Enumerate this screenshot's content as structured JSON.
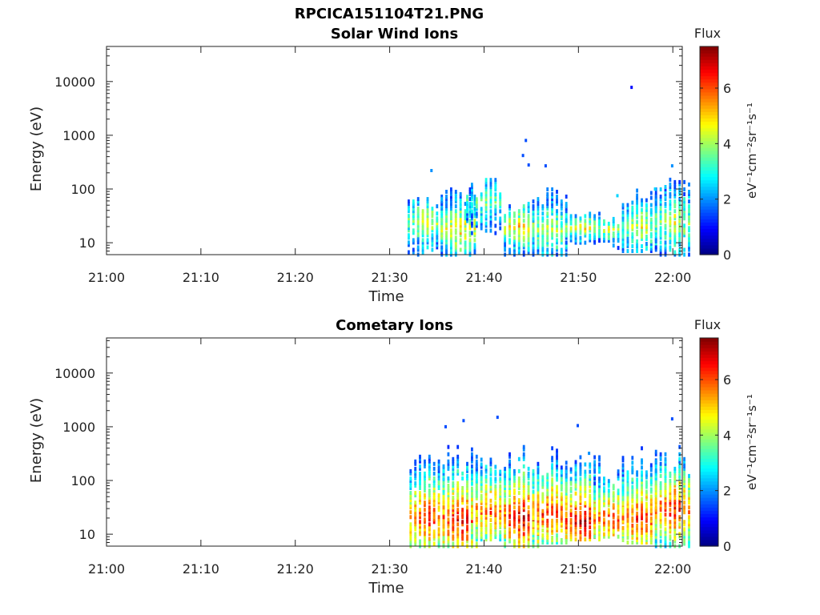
{
  "page_title": "RPCICA151104T21.PNG",
  "colormap": [
    "#00007f",
    "#0000ff",
    "#007fff",
    "#00ffff",
    "#7fff7f",
    "#ffff00",
    "#ff7f00",
    "#ff0000",
    "#7f0000"
  ],
  "chart_data": [
    {
      "type": "heatmap",
      "title": "Solar Wind Ions",
      "xlabel": "Time",
      "ylabel": "Energy (eV)",
      "x_range": [
        "21:00",
        "22:01"
      ],
      "x_ticks": [
        "21:00",
        "21:10",
        "21:20",
        "21:30",
        "21:40",
        "21:50",
        "22:00"
      ],
      "y_scale": "log",
      "ylim": [
        6,
        45000
      ],
      "y_ticks": [
        10,
        100,
        1000,
        10000
      ],
      "y_tick_labels": [
        "10",
        "100",
        "1000",
        "10000"
      ],
      "colorbar": {
        "label": "Flux",
        "unit": "eV⁻¹cm⁻²sr⁻¹s⁻¹",
        "min": 0,
        "max": 7.5,
        "ticks": [
          0,
          2,
          4,
          6
        ]
      },
      "bursts": [
        {
          "time": "21:33.8",
          "e_min": 6,
          "e_max": 130,
          "peak_e": 25,
          "peak_flux": 4.5
        },
        {
          "time": "21:37.3",
          "e_min": 6,
          "e_max": 170,
          "peak_e": 18,
          "peak_flux": 5.0
        },
        {
          "time": "21:40.0",
          "e_min": 9,
          "e_max": 160,
          "peak_e": 60,
          "peak_flux": 4.0
        },
        {
          "time": "21:44.0",
          "e_min": 6,
          "e_max": 70,
          "peak_e": 20,
          "peak_flux": 5.2
        },
        {
          "time": "21:47.0",
          "e_min": 6,
          "e_max": 160,
          "peak_e": 18,
          "peak_flux": 4.5
        },
        {
          "time": "21:50.5",
          "e_min": 10,
          "e_max": 45,
          "peak_e": 20,
          "peak_flux": 5.0
        },
        {
          "time": "21:53.5",
          "e_min": 8,
          "e_max": 35,
          "peak_e": 18,
          "peak_flux": 4.5
        },
        {
          "time": "21:56.5",
          "e_min": 7,
          "e_max": 150,
          "peak_e": 20,
          "peak_flux": 4.5
        },
        {
          "time": "22:00.0",
          "e_min": 6,
          "e_max": 280,
          "peak_e": 25,
          "peak_flux": 4.5
        }
      ],
      "isolated_points": [
        {
          "time": "21:44.3",
          "energy": 800,
          "flux": 1.5
        },
        {
          "time": "21:44.0",
          "energy": 420,
          "flux": 1.5
        },
        {
          "time": "21:44.6",
          "energy": 280,
          "flux": 1.5
        },
        {
          "time": "21:46.4",
          "energy": 270,
          "flux": 1.5
        },
        {
          "time": "21:34.3",
          "energy": 220,
          "flux": 2.0
        },
        {
          "time": "21:55.5",
          "energy": 7800,
          "flux": 1.0
        },
        {
          "time": "21:59.8",
          "energy": 270,
          "flux": 2.0
        },
        {
          "time": "21:54.0",
          "energy": 75,
          "flux": 2.5
        },
        {
          "time": "21:58.0",
          "energy": 100,
          "flux": 2.5
        }
      ]
    },
    {
      "type": "heatmap",
      "title": "Cometary Ions",
      "xlabel": "Time",
      "ylabel": "Energy (eV)",
      "x_range": [
        "21:00",
        "22:01"
      ],
      "x_ticks": [
        "21:00",
        "21:10",
        "21:20",
        "21:30",
        "21:40",
        "21:50",
        "22:00"
      ],
      "y_scale": "log",
      "ylim": [
        6,
        45000
      ],
      "y_ticks": [
        10,
        100,
        1000,
        10000
      ],
      "y_tick_labels": [
        "10",
        "100",
        "1000",
        "10000"
      ],
      "colorbar": {
        "label": "Flux",
        "unit": "eV⁻¹cm⁻²sr⁻¹s⁻¹",
        "min": 0,
        "max": 7.5,
        "ticks": [
          0,
          2,
          4,
          6
        ]
      },
      "bursts": [
        {
          "time": "21:34.0",
          "e_min": 6,
          "e_max": 600,
          "peak_e": 20,
          "peak_flux": 6.5
        },
        {
          "time": "21:37.5",
          "e_min": 6,
          "e_max": 1000,
          "peak_e": 18,
          "peak_flux": 6.8
        },
        {
          "time": "21:40.5",
          "e_min": 8,
          "e_max": 600,
          "peak_e": 28,
          "peak_flux": 6.0
        },
        {
          "time": "21:44.0",
          "e_min": 6,
          "e_max": 800,
          "peak_e": 20,
          "peak_flux": 7.0
        },
        {
          "time": "21:47.0",
          "e_min": 7,
          "e_max": 500,
          "peak_e": 25,
          "peak_flux": 6.5
        },
        {
          "time": "21:50.5",
          "e_min": 8,
          "e_max": 1000,
          "peak_e": 18,
          "peak_flux": 7.0
        },
        {
          "time": "21:53.5",
          "e_min": 9,
          "e_max": 300,
          "peak_e": 20,
          "peak_flux": 6.5
        },
        {
          "time": "21:56.5",
          "e_min": 7,
          "e_max": 700,
          "peak_e": 20,
          "peak_flux": 6.5
        },
        {
          "time": "22:00.0",
          "e_min": 6,
          "e_max": 600,
          "peak_e": 30,
          "peak_flux": 6.5
        }
      ],
      "isolated_points": [
        {
          "time": "21:41.3",
          "energy": 1500,
          "flux": 1.5
        },
        {
          "time": "21:37.7",
          "energy": 1300,
          "flux": 1.5
        },
        {
          "time": "21:49.8",
          "energy": 1050,
          "flux": 1.5
        },
        {
          "time": "21:59.8",
          "energy": 1400,
          "flux": 1.5
        },
        {
          "time": "21:35.8",
          "energy": 1000,
          "flux": 1.5
        },
        {
          "time": "21:51.0",
          "energy": 320,
          "flux": 2.0
        }
      ]
    }
  ]
}
